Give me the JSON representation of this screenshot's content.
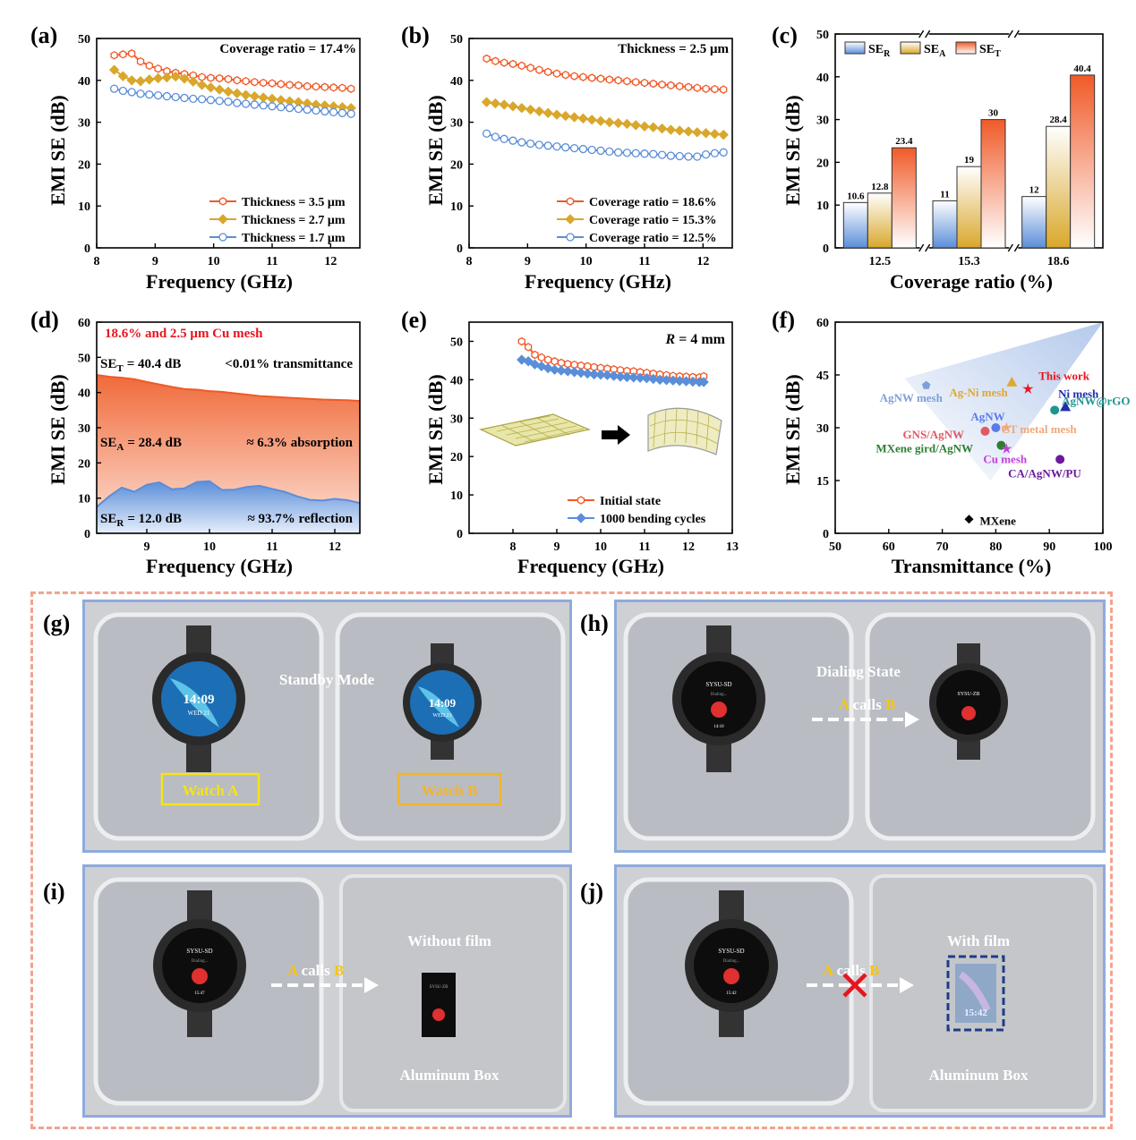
{
  "panels": {
    "a": {
      "label": "(a)",
      "annotation": "Coverage ratio = 17.4%",
      "xlabel": "Frequency (GHz)",
      "ylabel": "EMI SE (dB)"
    },
    "b": {
      "label": "(b)",
      "annotation": "Thickness = 2.5 μm",
      "xlabel": "Frequency (GHz)",
      "ylabel": "EMI SE (dB)"
    },
    "c": {
      "label": "(c)",
      "xlabel": "Coverage ratio (%)",
      "ylabel": "EMI SE (dB)",
      "legend": [
        {
          "base": "SE",
          "sub": "R"
        },
        {
          "base": "SE",
          "sub": "A"
        },
        {
          "base": "SE",
          "sub": "T"
        }
      ]
    },
    "d": {
      "label": "(d)",
      "title": "18.6% and 2.5 μm Cu mesh",
      "se_t_label": "SE",
      "se_t_sub": "T",
      "se_t_value": "= 40.4 dB",
      "se_t_note": "<0.01%  transmittance",
      "se_a_label": "SE",
      "se_a_sub": "A",
      "se_a_value": "= 28.4 dB",
      "se_a_note": "≈ 6.3% absorption",
      "se_r_label": "SE",
      "se_r_sub": "R",
      "se_r_value": "= 12.0 dB",
      "se_r_note": "≈ 93.7% reflection",
      "xlabel": "Frequency (GHz)",
      "ylabel": "EMI SE (dB)"
    },
    "e": {
      "label": "(e)",
      "annotation_var": "R",
      "annotation_rest": " = 4 mm",
      "xlabel": "Frequency (GHz)",
      "ylabel": "EMI SE (dB)"
    },
    "f": {
      "label": "(f)",
      "xlabel": "Transmittance (%)",
      "ylabel": "EMI SE (dB)"
    },
    "g": {
      "label": "(g)",
      "caption": "Standby Mode",
      "watch_a": "Watch A",
      "watch_b": "Watch  B",
      "time": "14:09",
      "date": "WED 21"
    },
    "h": {
      "label": "(h)",
      "caption": "Dialing State",
      "arrow_a": "A",
      "arrow_mid": " calls ",
      "arrow_b": "B",
      "caller": "SYSU-SD",
      "callee": "SYSU-ZB",
      "dialing": "Dialing...",
      "time": "14:10"
    },
    "i": {
      "label": "(i)",
      "caption": "Without film",
      "arrow_a": "A",
      "arrow_mid": " calls ",
      "arrow_b": "B",
      "box": "Aluminum Box",
      "caller": "SYSU-SD",
      "callee": "SYSU-ZB",
      "dialing": "Dialing...",
      "time": "15:47"
    },
    "j": {
      "label": "(j)",
      "caption": "With film",
      "arrow_a": "A",
      "arrow_mid": " calls ",
      "arrow_b": "B",
      "box": "Aluminum Box",
      "caller": "SYSU-SD",
      "dialing": "Dialing...",
      "time": "15:42",
      "screen_time": "15:42"
    }
  },
  "colors": {
    "red": "#f05a28",
    "gold": "#d9a72b",
    "blue": "#5b8ed8",
    "photo_border": "#8faadc",
    "dashed": "#f2a38f",
    "arrow_gold": "#f5c518"
  },
  "chart_data": [
    {
      "id": "a",
      "type": "line",
      "xlim": [
        8,
        12.5
      ],
      "ylim": [
        0,
        50
      ],
      "xticks": [
        "8",
        "9",
        "10",
        "11",
        "12"
      ],
      "yticks": [
        "0",
        "10",
        "20",
        "30",
        "40",
        "50"
      ],
      "x": [
        8.3,
        8.45,
        8.6,
        8.75,
        8.9,
        9.05,
        9.2,
        9.35,
        9.5,
        9.65,
        9.8,
        9.95,
        10.1,
        10.25,
        10.4,
        10.55,
        10.7,
        10.85,
        11.0,
        11.15,
        11.3,
        11.45,
        11.6,
        11.75,
        11.9,
        12.05,
        12.2,
        12.35
      ],
      "series": [
        {
          "name": "Thickness = 3.5 μm",
          "color": "#f05a28",
          "marker": "hexagon",
          "values": [
            46.0,
            46.2,
            46.4,
            44.5,
            43.5,
            42.8,
            42.2,
            41.8,
            41.5,
            41.2,
            40.8,
            40.6,
            40.5,
            40.3,
            40.0,
            39.8,
            39.6,
            39.4,
            39.3,
            39.1,
            38.9,
            38.8,
            38.6,
            38.5,
            38.4,
            38.3,
            38.2,
            38.0
          ]
        },
        {
          "name": "Thickness = 2.7 μm",
          "color": "#d9a72b",
          "marker": "diamond",
          "values": [
            42.5,
            41.0,
            40.0,
            39.8,
            40.2,
            40.5,
            40.7,
            40.9,
            40.4,
            39.7,
            38.9,
            38.3,
            37.8,
            37.3,
            36.9,
            36.5,
            36.2,
            35.9,
            35.6,
            35.3,
            35.0,
            34.8,
            34.5,
            34.2,
            34.0,
            33.8,
            33.6,
            33.4
          ]
        },
        {
          "name": "Thickness = 1.7 μm",
          "color": "#5b8ed8",
          "marker": "circle",
          "values": [
            38.0,
            37.5,
            37.2,
            36.8,
            36.6,
            36.4,
            36.2,
            36.0,
            35.8,
            35.6,
            35.5,
            35.3,
            35.1,
            34.9,
            34.6,
            34.4,
            34.2,
            34.0,
            33.8,
            33.6,
            33.4,
            33.2,
            33.0,
            32.8,
            32.6,
            32.4,
            32.2,
            32.0
          ]
        }
      ],
      "legend_position": "bottom-right"
    },
    {
      "id": "b",
      "type": "line",
      "xlim": [
        8,
        12.5
      ],
      "ylim": [
        0,
        50
      ],
      "xticks": [
        "8",
        "9",
        "10",
        "11",
        "12"
      ],
      "yticks": [
        "0",
        "10",
        "20",
        "30",
        "40",
        "50"
      ],
      "x": [
        8.3,
        8.45,
        8.6,
        8.75,
        8.9,
        9.05,
        9.2,
        9.35,
        9.5,
        9.65,
        9.8,
        9.95,
        10.1,
        10.25,
        10.4,
        10.55,
        10.7,
        10.85,
        11.0,
        11.15,
        11.3,
        11.45,
        11.6,
        11.75,
        11.9,
        12.05,
        12.2,
        12.35
      ],
      "series": [
        {
          "name": "Coverage ratio = 18.6%",
          "color": "#f05a28",
          "marker": "hexagon",
          "values": [
            45.2,
            44.6,
            44.2,
            43.9,
            43.5,
            43.0,
            42.5,
            42.0,
            41.6,
            41.3,
            41.0,
            40.8,
            40.6,
            40.4,
            40.2,
            40.0,
            39.8,
            39.6,
            39.4,
            39.2,
            39.0,
            38.8,
            38.6,
            38.4,
            38.2,
            38.0,
            37.9,
            37.8
          ]
        },
        {
          "name": "Coverage ratio = 15.3%",
          "color": "#d9a72b",
          "marker": "diamond",
          "values": [
            34.8,
            34.5,
            34.2,
            33.8,
            33.4,
            33.0,
            32.6,
            32.2,
            31.8,
            31.5,
            31.2,
            30.9,
            30.6,
            30.3,
            30.0,
            29.8,
            29.6,
            29.3,
            29.0,
            28.8,
            28.5,
            28.2,
            28.0,
            27.8,
            27.6,
            27.4,
            27.2,
            27.0
          ]
        },
        {
          "name": "Coverage ratio = 12.5%",
          "color": "#5b8ed8",
          "marker": "circle",
          "values": [
            27.3,
            26.5,
            26.0,
            25.6,
            25.2,
            24.9,
            24.6,
            24.4,
            24.2,
            24.0,
            23.8,
            23.6,
            23.4,
            23.2,
            23.0,
            22.8,
            22.7,
            22.6,
            22.5,
            22.4,
            22.2,
            22.0,
            21.9,
            21.8,
            21.8,
            22.3,
            22.6,
            22.8
          ]
        }
      ],
      "legend_position": "bottom-right"
    },
    {
      "id": "c",
      "type": "bar",
      "categories": [
        "12.5",
        "15.3",
        "18.6"
      ],
      "ylim": [
        0,
        50
      ],
      "yticks": [
        "0",
        "10",
        "20",
        "30",
        "40",
        "50"
      ],
      "series": [
        {
          "name": "SE_R",
          "color": "#5b8ed8",
          "values": [
            10.6,
            11,
            12
          ],
          "labels": [
            "10.6",
            "11",
            "12"
          ]
        },
        {
          "name": "SE_A",
          "color": "#d9a72b",
          "values": [
            12.8,
            19,
            28.4
          ],
          "labels": [
            "12.8",
            "19",
            "28.4"
          ]
        },
        {
          "name": "SE_T",
          "color": "#f05a28",
          "values": [
            23.4,
            30,
            40.4
          ],
          "labels": [
            "23.4",
            "30",
            "40.4"
          ]
        }
      ],
      "legend_position": "top-left"
    },
    {
      "id": "d",
      "type": "area",
      "xlim": [
        8.2,
        12.4
      ],
      "ylim": [
        0,
        60
      ],
      "xticks": [
        "9",
        "10",
        "11",
        "12"
      ],
      "yticks": [
        "0",
        "10",
        "20",
        "30",
        "40",
        "50",
        "60"
      ],
      "x": [
        8.2,
        8.4,
        8.6,
        8.8,
        9.0,
        9.2,
        9.4,
        9.6,
        9.8,
        10.0,
        10.2,
        10.4,
        10.6,
        10.8,
        11.0,
        11.2,
        11.4,
        11.6,
        11.8,
        12.0,
        12.2,
        12.4
      ],
      "series": [
        {
          "name": "SE_T",
          "color": "#f05a28",
          "values": [
            45.0,
            44.5,
            44.2,
            43.8,
            43.0,
            42.3,
            41.6,
            41.0,
            40.8,
            40.4,
            40.2,
            39.8,
            39.4,
            39.0,
            38.8,
            38.6,
            38.4,
            38.2,
            38.0,
            37.9,
            37.8,
            37.6
          ]
        },
        {
          "name": "SE_R",
          "color": "#5b8ed8",
          "values": [
            7.5,
            10.5,
            13.0,
            11.8,
            13.8,
            14.5,
            12.5,
            12.8,
            14.6,
            14.8,
            12.3,
            12.4,
            13.2,
            13.5,
            12.6,
            11.8,
            10.5,
            9.5,
            9.3,
            9.8,
            9.4,
            8.6
          ]
        }
      ]
    },
    {
      "id": "e",
      "type": "line",
      "xlim": [
        7,
        13
      ],
      "ylim": [
        0,
        55
      ],
      "xticks": [
        "8",
        "9",
        "10",
        "11",
        "12",
        "13"
      ],
      "yticks": [
        "0",
        "10",
        "20",
        "30",
        "40",
        "50"
      ],
      "x": [
        8.2,
        8.35,
        8.5,
        8.65,
        8.8,
        8.95,
        9.1,
        9.25,
        9.4,
        9.55,
        9.7,
        9.85,
        10.0,
        10.15,
        10.3,
        10.45,
        10.6,
        10.75,
        10.9,
        11.05,
        11.2,
        11.35,
        11.5,
        11.65,
        11.8,
        11.95,
        12.1,
        12.25,
        12.35
      ],
      "series": [
        {
          "name": "Initial state",
          "color": "#f05a28",
          "marker": "hexagon",
          "values": [
            50.0,
            48.5,
            46.5,
            45.8,
            45.2,
            44.8,
            44.4,
            44.1,
            43.9,
            43.7,
            43.5,
            43.3,
            43.1,
            42.9,
            42.7,
            42.5,
            42.3,
            42.2,
            42.0,
            41.8,
            41.6,
            41.4,
            41.2,
            41.0,
            40.9,
            40.8,
            40.7,
            40.6,
            40.9
          ]
        },
        {
          "name": "1000 bending cycles",
          "color": "#5b8ed8",
          "marker": "diamond",
          "values": [
            45.2,
            44.8,
            44.0,
            43.5,
            43.0,
            42.6,
            42.4,
            42.2,
            42.0,
            41.8,
            41.6,
            41.4,
            41.3,
            41.2,
            41.0,
            40.8,
            40.7,
            40.6,
            40.5,
            40.4,
            40.2,
            40.0,
            39.9,
            39.8,
            39.7,
            39.6,
            39.5,
            39.4,
            39.4
          ]
        }
      ],
      "legend_position": "bottom-right"
    },
    {
      "id": "f",
      "type": "scatter",
      "xlim": [
        50,
        100
      ],
      "ylim": [
        0,
        60
      ],
      "xticks": [
        "50",
        "60",
        "70",
        "80",
        "90",
        "100"
      ],
      "yticks": [
        "0",
        "15",
        "30",
        "45",
        "60"
      ],
      "points": [
        {
          "name": "This work",
          "x": 86,
          "y": 41,
          "color": "#e8141e",
          "marker": "star"
        },
        {
          "name": "AgNW mesh",
          "x": 67,
          "y": 42,
          "color": "#7f9fd6",
          "marker": "pentagon"
        },
        {
          "name": "Ag-Ni mesh",
          "x": 83,
          "y": 43,
          "color": "#e0a830",
          "marker": "triangle"
        },
        {
          "name": "Ni mesh",
          "x": 93,
          "y": 36,
          "color": "#1f2fa8",
          "marker": "triangle"
        },
        {
          "name": "AgNW",
          "x": 80,
          "y": 30,
          "color": "#5a7be8",
          "marker": "sphere"
        },
        {
          "name": "AgNW@rGO",
          "x": 91,
          "y": 35,
          "color": "#1e9690",
          "marker": "sphere"
        },
        {
          "name": "GNS/AgNW",
          "x": 78,
          "y": 29,
          "color": "#e05a66",
          "marker": "sphere"
        },
        {
          "name": "CT metal mesh",
          "x": 82,
          "y": 30,
          "color": "#f0a878",
          "marker": "star"
        },
        {
          "name": "MXene gird/AgNW",
          "x": 81,
          "y": 25,
          "color": "#2e7d32",
          "marker": "sphere"
        },
        {
          "name": "Cu mesh",
          "x": 82,
          "y": 24,
          "color": "#c040d8",
          "marker": "star"
        },
        {
          "name": "CA/AgNW/PU",
          "x": 92,
          "y": 21,
          "color": "#6a1b9a",
          "marker": "sphere"
        },
        {
          "name": "MXene",
          "x": 75,
          "y": 4,
          "color": "#000000",
          "marker": "diamond"
        }
      ]
    }
  ]
}
